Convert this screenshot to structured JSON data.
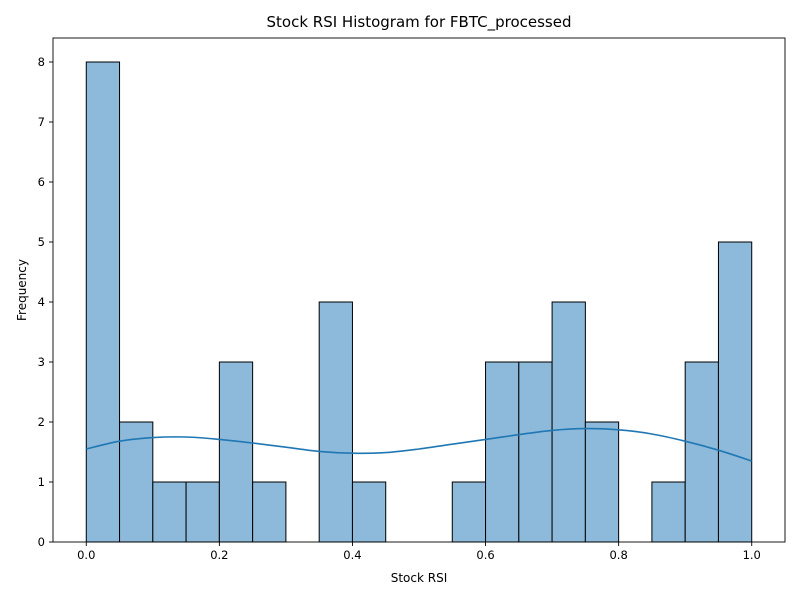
{
  "chart_data": {
    "type": "bar",
    "title": "Stock RSI Histogram for FBTC_processed",
    "xlabel": "Stock RSI",
    "ylabel": "Frequency",
    "xlim": [
      -0.05,
      1.05
    ],
    "ylim": [
      0,
      8.4
    ],
    "x_ticks": [
      "0.0",
      "0.2",
      "0.4",
      "0.6",
      "0.8",
      "1.0"
    ],
    "y_ticks": [
      "0",
      "1",
      "2",
      "3",
      "4",
      "5",
      "6",
      "7",
      "8"
    ],
    "bin_width": 0.05,
    "bin_starts": [
      0.0,
      0.05,
      0.1,
      0.15,
      0.2,
      0.25,
      0.3,
      0.35,
      0.4,
      0.45,
      0.5,
      0.55,
      0.6,
      0.65,
      0.7,
      0.75,
      0.8,
      0.85,
      0.9,
      0.95
    ],
    "values": [
      8,
      2,
      1,
      1,
      3,
      1,
      0,
      4,
      1,
      0,
      0,
      1,
      3,
      3,
      4,
      2,
      0,
      1,
      3,
      5
    ],
    "kde_curve": {
      "x": [
        0.0,
        0.05,
        0.1,
        0.15,
        0.2,
        0.25,
        0.3,
        0.35,
        0.4,
        0.45,
        0.5,
        0.55,
        0.6,
        0.65,
        0.7,
        0.75,
        0.8,
        0.85,
        0.9,
        0.95,
        1.0
      ],
      "y": [
        1.55,
        1.68,
        1.74,
        1.75,
        1.71,
        1.65,
        1.58,
        1.51,
        1.48,
        1.49,
        1.55,
        1.63,
        1.71,
        1.79,
        1.86,
        1.89,
        1.87,
        1.8,
        1.68,
        1.53,
        1.35
      ]
    },
    "colors": {
      "bar_fill": "#8db9da",
      "bar_edge": "#000000",
      "kde_line": "#1f77b4"
    },
    "grid": false,
    "legend": "none"
  }
}
